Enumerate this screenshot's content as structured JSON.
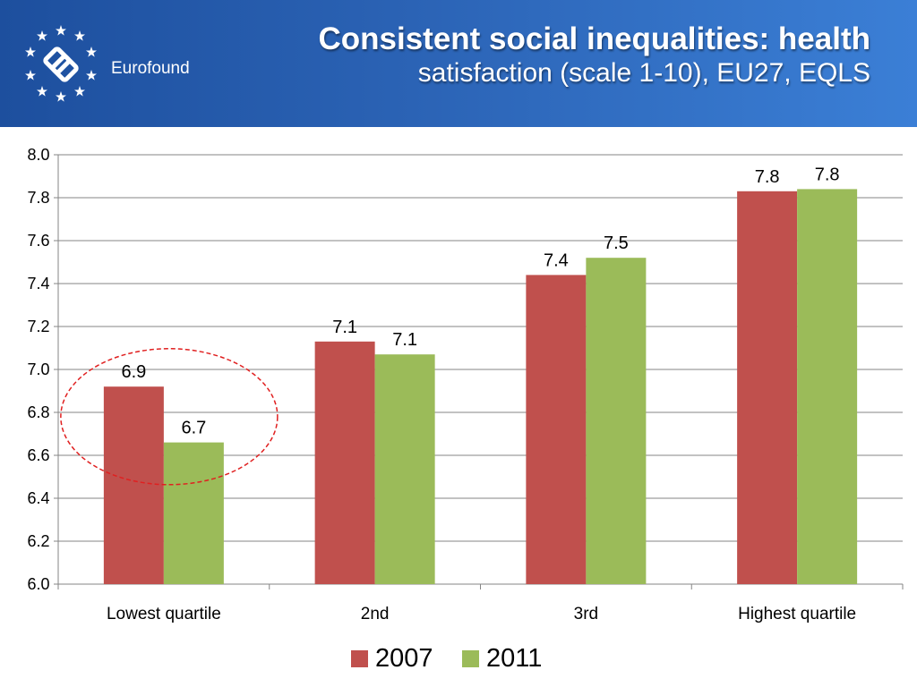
{
  "header": {
    "brand": "Eurofound",
    "title_line1": "Consistent social inequalities: health",
    "title_line2": "satisfaction (scale 1-10), EU27, EQLS"
  },
  "icons": {
    "logo": "eurofound-logo-stars"
  },
  "colors": {
    "series_2007": "#c0504d",
    "series_2011": "#9bbb59",
    "highlight": "#e02020",
    "header": "#2b63b5"
  },
  "chart_data": {
    "type": "bar",
    "categories": [
      "Lowest quartile",
      "2nd",
      "3rd",
      "Highest quartile"
    ],
    "series": [
      {
        "name": "2007",
        "values": [
          6.92,
          7.13,
          7.44,
          7.83
        ],
        "labels": [
          "6.9",
          "7.1",
          "7.4",
          "7.8"
        ]
      },
      {
        "name": "2011",
        "values": [
          6.66,
          7.07,
          7.52,
          7.84
        ],
        "labels": [
          "6.7",
          "7.1",
          "7.5",
          "7.8"
        ]
      }
    ],
    "ylim": [
      6.0,
      8.0
    ],
    "yticks": [
      "6.0",
      "6.2",
      "6.4",
      "6.6",
      "6.8",
      "7.0",
      "7.2",
      "7.4",
      "7.6",
      "7.8",
      "8.0"
    ],
    "grid": true,
    "legend": "bottom",
    "annotation": "red dashed ellipse around Lowest quartile bars",
    "xlabel": "",
    "ylabel": ""
  }
}
